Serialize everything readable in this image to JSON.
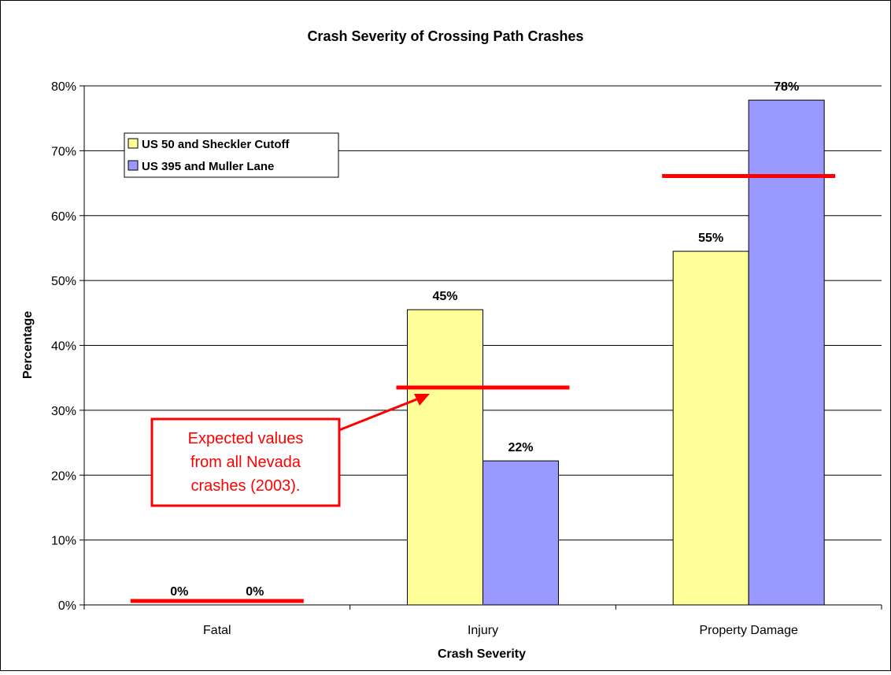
{
  "chart_data": {
    "type": "bar",
    "title": "Crash Severity of Crossing Path Crashes",
    "xlabel": "Crash Severity",
    "ylabel": "Percentage",
    "categories": [
      "Fatal",
      "Injury",
      "Property Damage"
    ],
    "series": [
      {
        "name": "US 50 and Sheckler Cutoff",
        "values": [
          0,
          45.5,
          54.5
        ],
        "labels": [
          "0%",
          "45%",
          "55%"
        ],
        "color": "#ffff99"
      },
      {
        "name": "US 395 and Muller Lane",
        "values": [
          0,
          22.2,
          77.8
        ],
        "labels": [
          "0%",
          "22%",
          "78%"
        ],
        "color": "#9999ff"
      }
    ],
    "expected_values": [
      0.6,
      33.5,
      66.1
    ],
    "expected_color": "#ff0000",
    "ylim": [
      0,
      80
    ],
    "yticks": [
      0,
      10,
      20,
      30,
      40,
      50,
      60,
      70,
      80
    ],
    "ytick_labels": [
      "0%",
      "10%",
      "20%",
      "30%",
      "40%",
      "50%",
      "60%",
      "70%",
      "80%"
    ],
    "grid": true,
    "legend_position": "top-left",
    "annotation": {
      "lines": [
        "Expected values",
        "from all Nevada",
        "crashes (2003)."
      ],
      "color": "#ff0000"
    }
  }
}
